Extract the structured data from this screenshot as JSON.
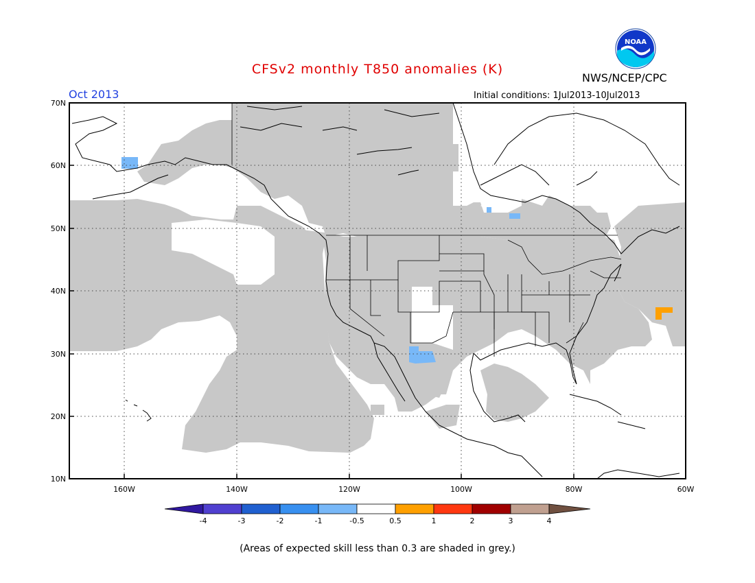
{
  "header": {
    "title": "CFSv2 monthly T850 anomalies (K)",
    "agency": "NWS/NCEP/CPC",
    "logo_text": "NOAA",
    "month": "Oct 2013",
    "initial_conditions": "Initial conditions: 1Jul2013-10Jul2013"
  },
  "map": {
    "projection": "lat-lon",
    "lon_range": [
      -170,
      -60
    ],
    "lat_range": [
      10,
      70
    ],
    "lat_ticks": [
      "10N",
      "20N",
      "30N",
      "40N",
      "50N",
      "60N",
      "70N"
    ],
    "lon_ticks": [
      "160W",
      "140W",
      "120W",
      "100W",
      "80W",
      "60W"
    ],
    "grid": "dotted",
    "skill_mask_color": "#c8c8c8",
    "anomaly_regions": [
      {
        "name": "Bering Sea",
        "category": "-1 to -0.5",
        "color": "#78b8f8"
      },
      {
        "name": "Northern Mexico",
        "category": "-1 to -0.5",
        "color": "#78b8f8"
      },
      {
        "name": "Hudson Bay south",
        "category": "-1 to -0.5",
        "color": "#78b8f8"
      },
      {
        "name": "Western Atlantic",
        "category": "0.5 to 1",
        "color": "#ffa000"
      }
    ]
  },
  "colorbar": {
    "labels": [
      "-4",
      "-3",
      "-2",
      "-1",
      "-0.5",
      "0.5",
      "1",
      "2",
      "3",
      "4"
    ],
    "colors": [
      "#3018a0",
      "#5040d0",
      "#2060d0",
      "#3890f0",
      "#78b8f8",
      "#ffffff",
      "#ffa000",
      "#ff3810",
      "#a00000",
      "#c0a090",
      "#705040"
    ]
  },
  "footnote": "(Areas of expected skill less than 0.3 are shaded in grey.)"
}
